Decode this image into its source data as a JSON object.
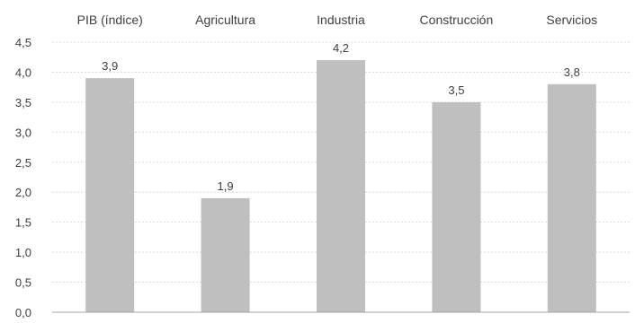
{
  "chart_data": {
    "type": "bar",
    "title": "",
    "xlabel": "",
    "ylabel": "",
    "categories": [
      "PIB (índice)",
      "Agricultura",
      "Industria",
      "Construcción",
      "Servicios"
    ],
    "values": [
      3.9,
      1.9,
      4.2,
      3.5,
      3.8
    ],
    "value_labels": [
      "3,9",
      "1,9",
      "4,2",
      "3,5",
      "3,8"
    ],
    "ylim": [
      0,
      4.5
    ],
    "yticks": [
      0.0,
      0.5,
      1.0,
      1.5,
      2.0,
      2.5,
      3.0,
      3.5,
      4.0,
      4.5
    ],
    "ytick_labels": [
      "0,0",
      "0,5",
      "1,0",
      "1,5",
      "2,0",
      "2,5",
      "3,0",
      "3,5",
      "4,0",
      "4,5"
    ],
    "category_axis_position": "top",
    "grid": true,
    "legend": "none",
    "colors": {
      "bar": "#bfbfbf",
      "grid": "#d9d9d9",
      "axis": "#a6a6a6",
      "text": "#404040"
    }
  }
}
